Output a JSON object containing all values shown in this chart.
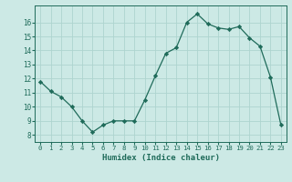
{
  "x": [
    0,
    1,
    2,
    3,
    4,
    5,
    6,
    7,
    8,
    9,
    10,
    11,
    12,
    13,
    14,
    15,
    16,
    17,
    18,
    19,
    20,
    21,
    22,
    23
  ],
  "y": [
    11.8,
    11.1,
    10.7,
    10.0,
    9.0,
    8.2,
    8.7,
    9.0,
    9.0,
    9.0,
    10.5,
    12.2,
    13.8,
    14.2,
    16.0,
    16.6,
    15.9,
    15.6,
    15.5,
    15.7,
    14.9,
    14.3,
    12.1,
    8.7
  ],
  "xlabel": "Humidex (Indice chaleur)",
  "line_color": "#1f6b5a",
  "marker": "D",
  "marker_size": 2.2,
  "line_width": 0.9,
  "bg_color": "#cce9e5",
  "grid_color": "#aed4cf",
  "axis_color": "#1f6b5a",
  "tick_label_color": "#1f6b5a",
  "ylim": [
    7.5,
    17.2
  ],
  "xlim": [
    -0.5,
    23.5
  ],
  "yticks": [
    8,
    9,
    10,
    11,
    12,
    13,
    14,
    15,
    16
  ],
  "xticks": [
    0,
    1,
    2,
    3,
    4,
    5,
    6,
    7,
    8,
    9,
    10,
    11,
    12,
    13,
    14,
    15,
    16,
    17,
    18,
    19,
    20,
    21,
    22,
    23
  ]
}
